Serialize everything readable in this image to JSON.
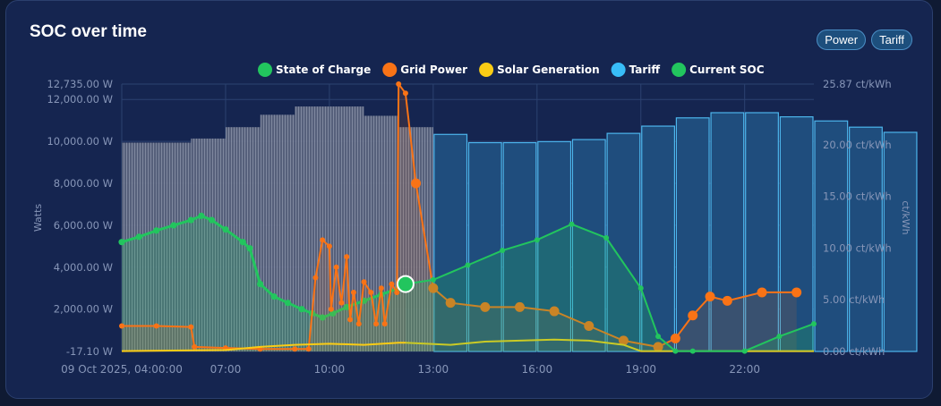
{
  "card": {
    "title": "SOC over time",
    "buttons": [
      "Power",
      "Tariff"
    ]
  },
  "chart_data": {
    "type": "line",
    "legend_position": "top-center",
    "x_axis": {
      "start": "09 Oct 2025, 04:00:00",
      "end": "09 Oct 2025, 24:00:00",
      "tick_hours": [
        4,
        7,
        10,
        13,
        16,
        19,
        22
      ],
      "tick_labels": [
        "09 Oct 2025, 04:00:00",
        "07:00",
        "10:00",
        "13:00",
        "16:00",
        "19:00",
        "22:00"
      ]
    },
    "y_left": {
      "label": "Watts",
      "range": [
        -17.1,
        12735
      ],
      "ticks": [
        -17.1,
        2000,
        4000,
        6000,
        8000,
        10000,
        12000,
        12735
      ],
      "tick_labels": [
        "-17.10 W",
        "2,000.00 W",
        "4,000.00 W",
        "6,000.00 W",
        "8,000.00 W",
        "10,000.00 W",
        "12,000.00 W",
        "12,735.00 W"
      ]
    },
    "y_right": {
      "label": "ct/kWh",
      "range": [
        0,
        25.87
      ],
      "ticks": [
        0,
        5,
        10,
        15,
        20,
        25.87
      ],
      "tick_labels": [
        "0.00 ct/kWh",
        "5.00 ct/kWh",
        "10.00 ct/kWh",
        "15.00 ct/kWh",
        "20.00 ct/kWh",
        "25.87 ct/kWh"
      ]
    },
    "series": [
      {
        "name": "State of Charge",
        "axis": "left",
        "color": "#22c55e",
        "points": [
          [
            4.0,
            5200
          ],
          [
            4.5,
            5450
          ],
          [
            5.0,
            5750
          ],
          [
            5.5,
            6000
          ],
          [
            6.0,
            6250
          ],
          [
            6.3,
            6450
          ],
          [
            6.6,
            6250
          ],
          [
            7.0,
            5800
          ],
          [
            7.5,
            5200
          ],
          [
            7.7,
            4900
          ],
          [
            8.0,
            3200
          ],
          [
            8.4,
            2600
          ],
          [
            8.8,
            2300
          ],
          [
            9.2,
            2000
          ],
          [
            9.5,
            1800
          ],
          [
            9.8,
            1600
          ],
          [
            10.1,
            1800
          ],
          [
            10.5,
            2100
          ],
          [
            11.0,
            2400
          ],
          [
            11.5,
            2700
          ],
          [
            12.0,
            3000
          ],
          [
            12.2,
            3200
          ]
        ]
      },
      {
        "name": "Grid Power",
        "axis": "left",
        "color": "#f97316",
        "points": [
          [
            4.0,
            1200
          ],
          [
            5.0,
            1200
          ],
          [
            6.0,
            1150
          ],
          [
            6.1,
            200
          ],
          [
            7.0,
            150
          ],
          [
            8.0,
            100
          ],
          [
            9.0,
            100
          ],
          [
            9.4,
            100
          ],
          [
            9.6,
            3500
          ],
          [
            9.8,
            5300
          ],
          [
            10.0,
            5000
          ],
          [
            10.05,
            2000
          ],
          [
            10.2,
            4000
          ],
          [
            10.35,
            2300
          ],
          [
            10.5,
            4500
          ],
          [
            10.6,
            1500
          ],
          [
            10.7,
            2800
          ],
          [
            10.85,
            1300
          ],
          [
            11.0,
            3300
          ],
          [
            11.2,
            2800
          ],
          [
            11.35,
            1300
          ],
          [
            11.5,
            3000
          ],
          [
            11.6,
            1300
          ],
          [
            11.8,
            3200
          ],
          [
            11.95,
            2800
          ],
          [
            12.0,
            12735
          ],
          [
            12.2,
            12300
          ],
          [
            12.5,
            8000
          ],
          [
            13.0,
            3000
          ],
          [
            13.5,
            2300
          ],
          [
            14.5,
            2100
          ],
          [
            15.5,
            2100
          ],
          [
            16.5,
            1900
          ],
          [
            17.5,
            1200
          ],
          [
            18.5,
            500
          ],
          [
            19.5,
            200
          ],
          [
            20.0,
            600
          ],
          [
            20.5,
            1700
          ],
          [
            21.0,
            2600
          ],
          [
            21.5,
            2400
          ],
          [
            22.5,
            2800
          ],
          [
            23.5,
            2800
          ]
        ]
      },
      {
        "name": "Solar Generation",
        "axis": "left",
        "color": "#facc15",
        "points": [
          [
            4.0,
            0
          ],
          [
            7.0,
            50
          ],
          [
            8.0,
            200
          ],
          [
            9.0,
            300
          ],
          [
            10.0,
            350
          ],
          [
            11.0,
            300
          ],
          [
            12.0,
            400
          ],
          [
            12.2,
            400
          ],
          [
            13.5,
            300
          ],
          [
            14.5,
            450
          ],
          [
            15.5,
            500
          ],
          [
            16.5,
            550
          ],
          [
            17.5,
            500
          ],
          [
            18.5,
            300
          ],
          [
            19.0,
            0
          ],
          [
            24.0,
            0
          ]
        ]
      },
      {
        "name": "Tariff",
        "axis": "right",
        "color": "#38bdf8",
        "hourly_values": [
          20.2,
          20.2,
          20.6,
          21.7,
          22.9,
          23.7,
          23.7,
          22.8,
          21.7,
          21.0,
          20.2,
          20.2,
          20.3,
          20.5,
          21.1,
          21.8,
          22.6,
          23.1,
          23.1,
          22.7,
          22.3,
          21.7,
          21.2
        ],
        "hourly_start": 4
      },
      {
        "name": "Current SOC",
        "axis": "left",
        "color": "#22c55e",
        "points": [
          [
            12.2,
            3200
          ],
          [
            13.0,
            3400
          ],
          [
            14.0,
            4100
          ],
          [
            15.0,
            4800
          ],
          [
            16.0,
            5300
          ],
          [
            17.0,
            6050
          ],
          [
            18.0,
            5400
          ],
          [
            19.0,
            3000
          ],
          [
            19.5,
            700
          ],
          [
            20.0,
            0
          ],
          [
            20.5,
            0
          ],
          [
            22.0,
            0
          ],
          [
            23.0,
            700
          ],
          [
            24.0,
            1300
          ]
        ]
      }
    ],
    "current_marker": {
      "hour": 12.2,
      "value": 3200
    }
  }
}
